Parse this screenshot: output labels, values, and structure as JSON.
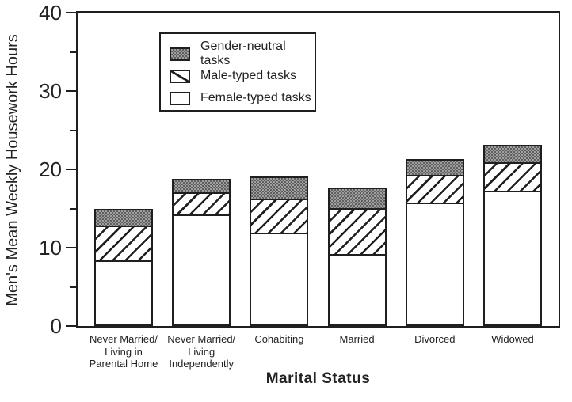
{
  "chart_data": {
    "type": "bar",
    "stacked": true,
    "title": "",
    "xlabel": "Marital Status",
    "ylabel": "Men's Mean Weekly Housework Hours",
    "ylim": [
      0,
      40
    ],
    "yticks_major": [
      0,
      10,
      20,
      30,
      40
    ],
    "yticks_minor": [
      5,
      15,
      25,
      35
    ],
    "grid": false,
    "legend_position": "upper-left-inside",
    "categories": [
      {
        "name": "Never Married/Living in Parental Home",
        "label_lines": [
          "Never Married/",
          "Living in",
          "Parental Home"
        ]
      },
      {
        "name": "Never Married/Living Independently",
        "label_lines": [
          "Never Married/",
          "Living",
          "Independently"
        ]
      },
      {
        "name": "Cohabiting",
        "label_lines": [
          "Cohabiting"
        ]
      },
      {
        "name": "Married",
        "label_lines": [
          "Married"
        ]
      },
      {
        "name": "Divorced",
        "label_lines": [
          "Divorced"
        ]
      },
      {
        "name": "Widowed",
        "label_lines": [
          "Widowed"
        ]
      }
    ],
    "series": [
      {
        "name": "Female-typed tasks",
        "pattern": "plain",
        "values": [
          8.4,
          14.2,
          11.9,
          9.2,
          15.8,
          17.3
        ]
      },
      {
        "name": "Male-typed tasks",
        "pattern": "diagonal-hatch",
        "values": [
          4.4,
          2.9,
          4.4,
          5.9,
          3.5,
          3.6
        ]
      },
      {
        "name": "Gender-neutral tasks",
        "pattern": "gray-dots",
        "values": [
          2.2,
          1.7,
          2.8,
          2.6,
          2.0,
          2.2
        ]
      }
    ],
    "stack_totals": [
      15.0,
      18.8,
      19.1,
      17.7,
      21.3,
      23.1
    ]
  },
  "legend": {
    "items": [
      {
        "label": "Gender-neutral tasks",
        "pattern": "gray-dots"
      },
      {
        "label": "Male-typed tasks",
        "pattern": "diagonal-hatch"
      },
      {
        "label": "Female-typed tasks",
        "pattern": "plain"
      }
    ]
  },
  "colors": {
    "ink": "#1f1f1f",
    "background": "#ffffff",
    "bar_fill": "#ffffff",
    "dots_base": "#a0a0a0",
    "dots_dark": "#5f5f5f"
  }
}
